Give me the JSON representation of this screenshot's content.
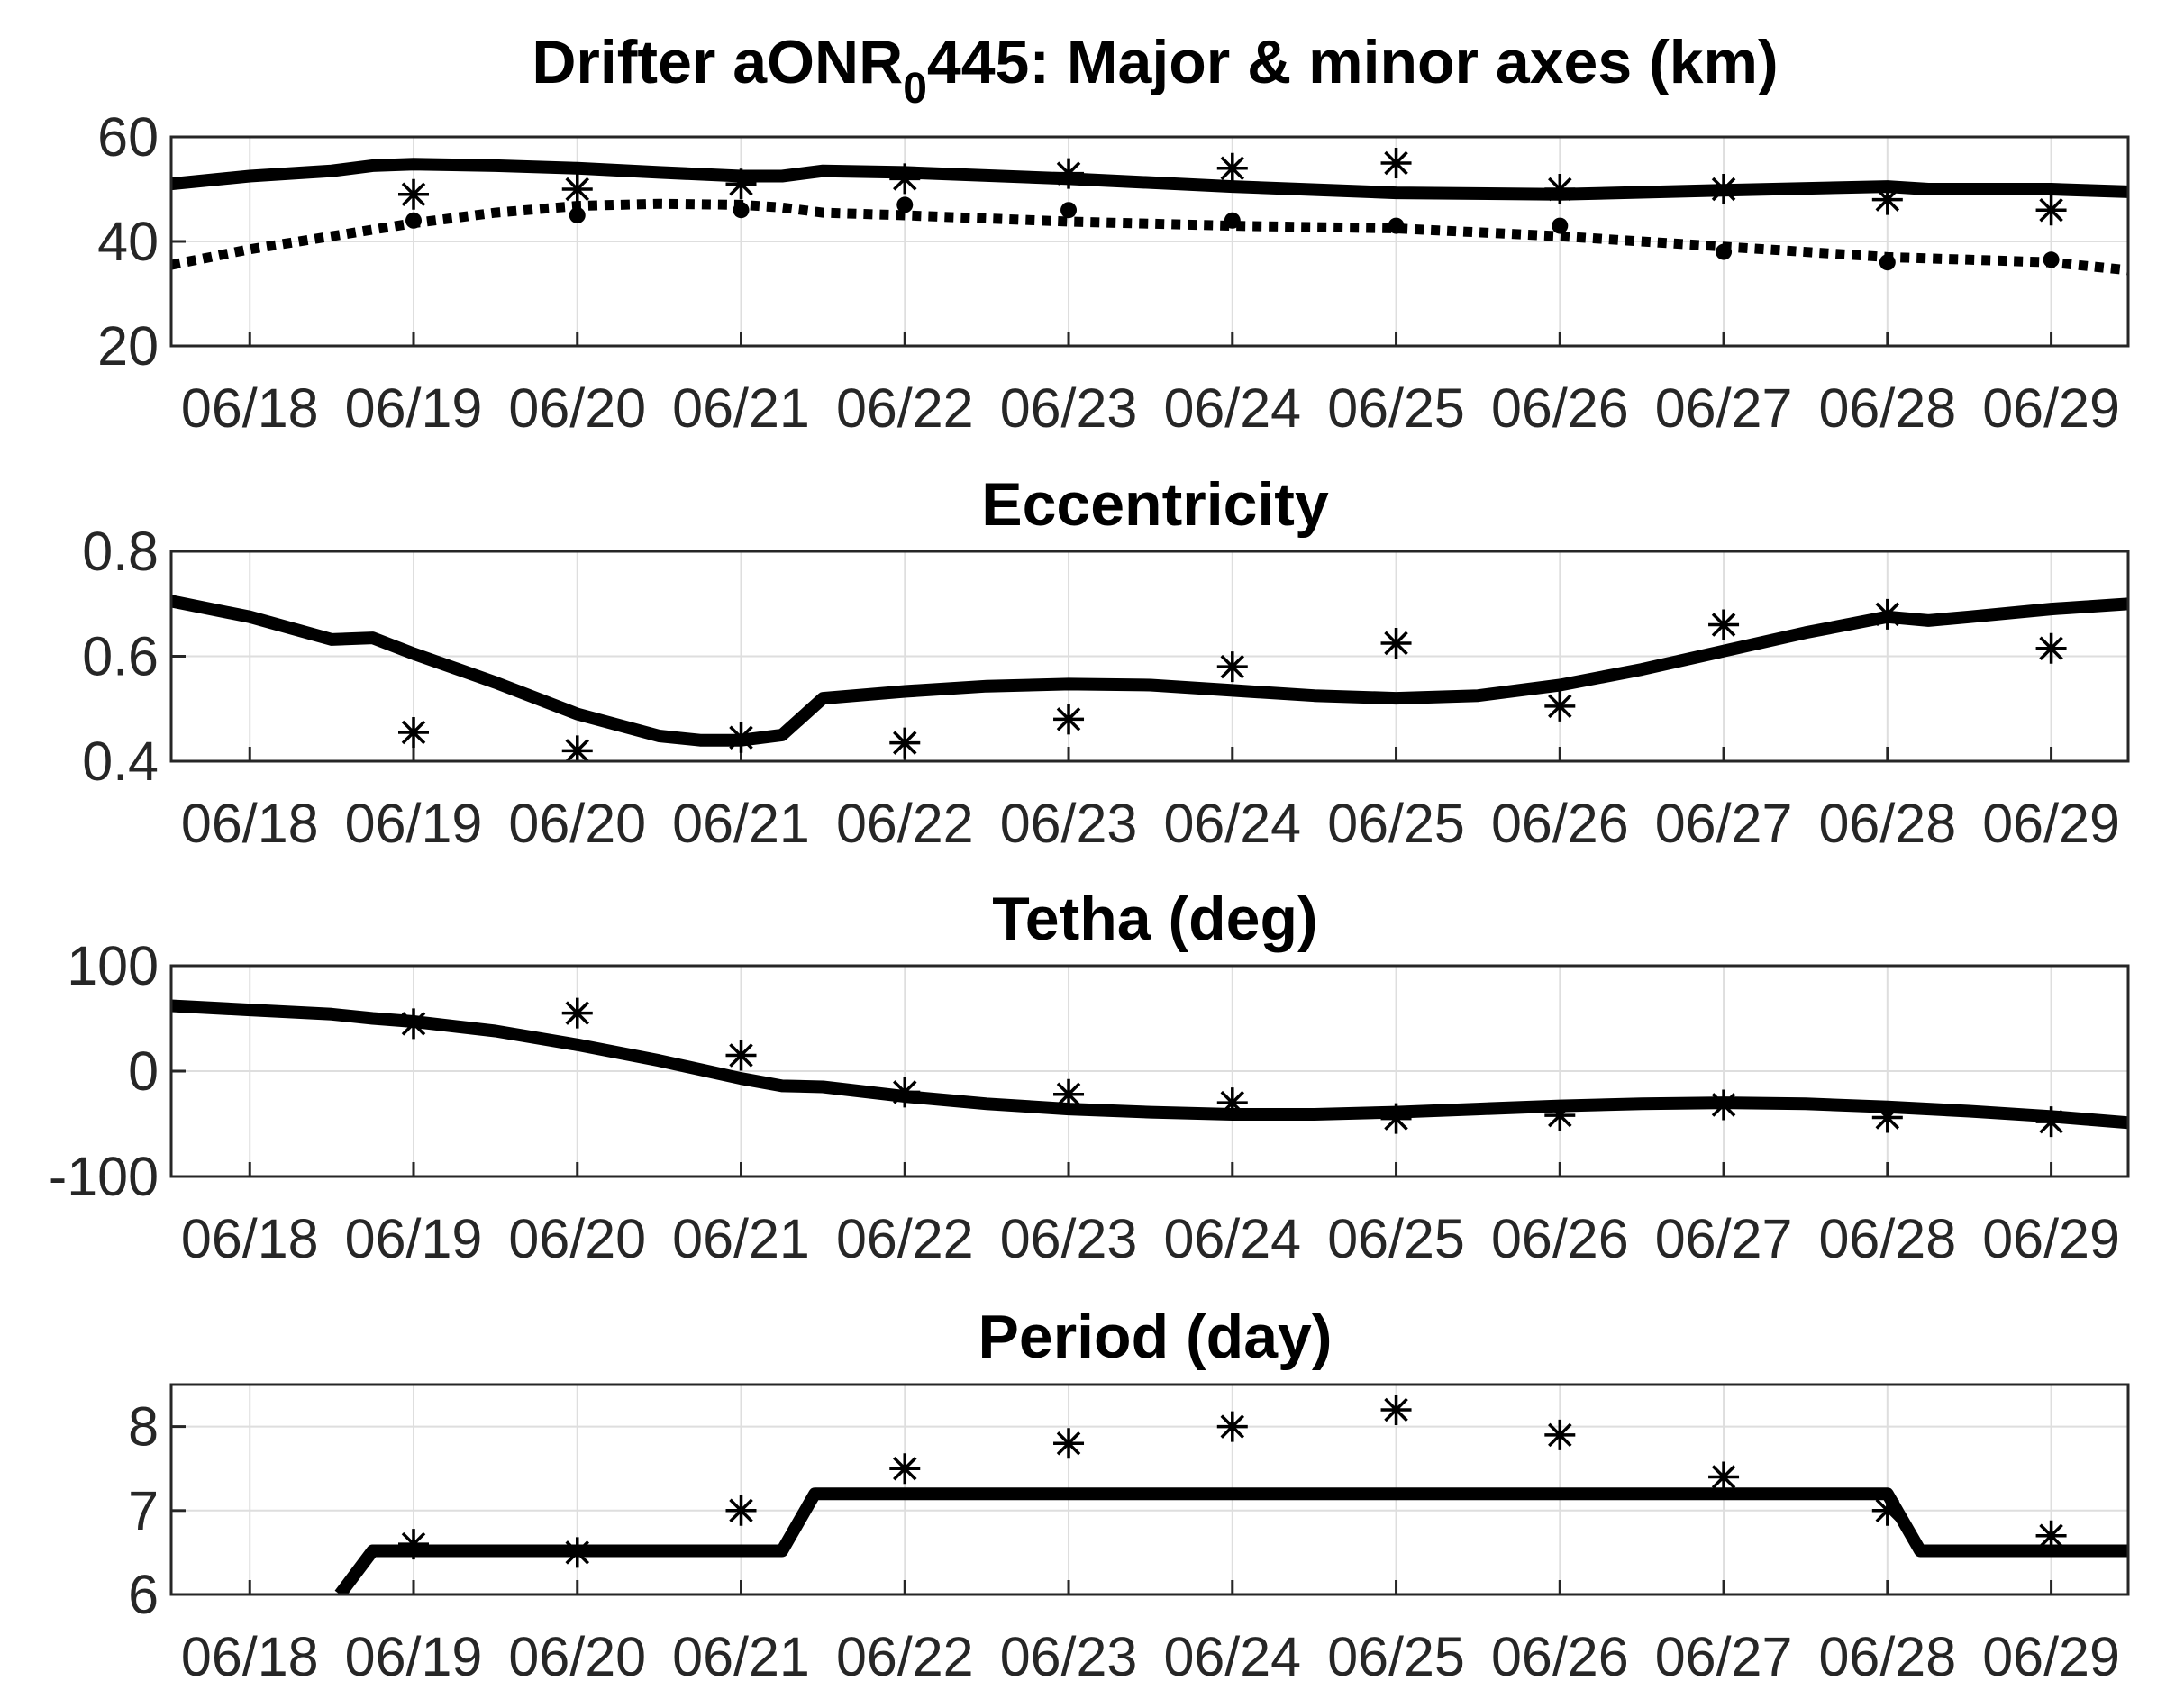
{
  "chart_data": [
    {
      "type": "line",
      "title_parts": [
        "Drifter aONR",
        "0",
        "445: Major & minor axes (km)"
      ],
      "xtick_labels": [
        "06/18",
        "06/19",
        "06/20",
        "06/21",
        "06/22",
        "06/23",
        "06/24",
        "06/25",
        "06/26",
        "06/27",
        "06/28",
        "06/29"
      ],
      "xlim": [
        17.52,
        29.47
      ],
      "ylim": [
        20,
        60
      ],
      "yticks": [
        "60",
        "40",
        "20"
      ],
      "ytick_values": [
        60,
        40,
        20
      ],
      "grid": true,
      "series": [
        {
          "style": "solid-line",
          "x": [
            17.52,
            18.0,
            18.5,
            18.75,
            19.0,
            19.5,
            20.0,
            20.5,
            21.0,
            21.25,
            21.5,
            22.0,
            23.0,
            24.0,
            25.0,
            26.0,
            27.0,
            28.0,
            28.25,
            29.0,
            29.47
          ],
          "y": [
            51,
            52.5,
            53.5,
            54.5,
            54.8,
            54.5,
            54,
            53.2,
            52.5,
            52.5,
            53.5,
            53.2,
            52,
            50.5,
            49.3,
            49,
            49.8,
            50.5,
            50,
            50,
            49.5
          ]
        },
        {
          "style": "dotted-line",
          "x": [
            17.52,
            18.0,
            18.5,
            19.0,
            19.5,
            20.0,
            20.5,
            21.0,
            21.25,
            21.5,
            22.0,
            23.0,
            24.0,
            25.0,
            26.0,
            27.0,
            28.0,
            28.5,
            29.0,
            29.47
          ],
          "y": [
            35.5,
            38.5,
            41,
            43.5,
            45.5,
            46.8,
            47.2,
            47,
            46.5,
            45.5,
            45,
            43.8,
            43,
            42.5,
            41,
            39,
            37,
            36.5,
            36,
            34.5
          ]
        },
        {
          "style": "stars",
          "x": [
            19,
            20,
            21,
            22,
            23,
            24,
            25,
            26,
            27,
            28,
            29
          ],
          "y": [
            49,
            50,
            51,
            52,
            53,
            54,
            55,
            50,
            50,
            48,
            46
          ]
        },
        {
          "style": "dots",
          "x": [
            19,
            20,
            21,
            22,
            23,
            24,
            25,
            26,
            27,
            28,
            29
          ],
          "y": [
            44,
            45,
            46,
            47,
            46,
            44,
            43,
            43,
            38,
            36,
            36.5
          ]
        }
      ]
    },
    {
      "type": "line",
      "title": "Eccentricity",
      "xtick_labels": [
        "06/18",
        "06/19",
        "06/20",
        "06/21",
        "06/22",
        "06/23",
        "06/24",
        "06/25",
        "06/26",
        "06/27",
        "06/28",
        "06/29"
      ],
      "xlim": [
        17.52,
        29.47
      ],
      "ylim": [
        0.4,
        0.8
      ],
      "yticks": [
        "0.8",
        "0.6",
        "0.4"
      ],
      "ytick_values": [
        0.8,
        0.6,
        0.4
      ],
      "grid": true,
      "series": [
        {
          "style": "solid-line",
          "x": [
            17.52,
            18.0,
            18.5,
            18.75,
            19.0,
            19.5,
            20.0,
            20.5,
            20.75,
            21.0,
            21.25,
            21.5,
            22.0,
            22.5,
            23.0,
            23.5,
            24.0,
            24.5,
            25.0,
            25.5,
            26.0,
            26.5,
            27.0,
            27.5,
            28.0,
            28.25,
            28.5,
            29.0,
            29.47
          ],
          "y": [
            0.705,
            0.675,
            0.632,
            0.635,
            0.605,
            0.55,
            0.49,
            0.448,
            0.44,
            0.44,
            0.45,
            0.52,
            0.533,
            0.543,
            0.547,
            0.545,
            0.535,
            0.525,
            0.52,
            0.525,
            0.545,
            0.575,
            0.61,
            0.645,
            0.675,
            0.668,
            0.675,
            0.69,
            0.7
          ]
        },
        {
          "style": "stars",
          "x": [
            19,
            20,
            21,
            22,
            23,
            24,
            25,
            26,
            27,
            28,
            29
          ],
          "y": [
            0.455,
            0.42,
            0.445,
            0.435,
            0.48,
            0.58,
            0.625,
            0.505,
            0.66,
            0.68,
            0.615
          ]
        }
      ]
    },
    {
      "type": "line",
      "title": "Tetha (deg)",
      "xtick_labels": [
        "06/18",
        "06/19",
        "06/20",
        "06/21",
        "06/22",
        "06/23",
        "06/24",
        "06/25",
        "06/26",
        "06/27",
        "06/28",
        "06/29"
      ],
      "xlim": [
        17.52,
        29.47
      ],
      "ylim": [
        -100,
        100
      ],
      "yticks": [
        "100",
        "0",
        "-100"
      ],
      "ytick_values": [
        100,
        0,
        -100
      ],
      "grid": true,
      "series": [
        {
          "style": "solid-line",
          "x": [
            17.52,
            18.0,
            18.5,
            18.75,
            19.0,
            19.5,
            20.0,
            20.5,
            21.0,
            21.25,
            21.5,
            22.0,
            22.5,
            23.0,
            23.5,
            24.0,
            24.5,
            25.0,
            25.5,
            26.0,
            26.5,
            27.0,
            27.5,
            28.0,
            28.5,
            29.0,
            29.47
          ],
          "y": [
            62,
            58,
            54,
            50,
            47,
            38,
            25,
            10,
            -7,
            -14,
            -15,
            -24,
            -31,
            -36,
            -39,
            -41,
            -41,
            -39,
            -36,
            -33,
            -31,
            -30,
            -31,
            -34,
            -38,
            -43,
            -49
          ]
        },
        {
          "style": "stars",
          "x": [
            19,
            20,
            21,
            22,
            23,
            24,
            25,
            26,
            27,
            28,
            29
          ],
          "y": [
            45,
            55,
            15,
            -20,
            -22,
            -30,
            -45,
            -42,
            -32,
            -44,
            -48
          ]
        }
      ]
    },
    {
      "type": "line",
      "title": "Period (day)",
      "xtick_labels": [
        "06/18",
        "06/19",
        "06/20",
        "06/21",
        "06/22",
        "06/23",
        "06/24",
        "06/25",
        "06/26",
        "06/27",
        "06/28",
        "06/29"
      ],
      "xlim": [
        17.52,
        29.47
      ],
      "ylim": [
        6,
        8.5
      ],
      "yticks": [
        "8",
        "7",
        "6"
      ],
      "ytick_values": [
        8,
        7,
        6
      ],
      "grid": true,
      "series": [
        {
          "style": "solid-line",
          "x": [
            18.55,
            18.75,
            21.25,
            21.45,
            28.0,
            28.2,
            29.47
          ],
          "y": [
            6.0,
            6.52,
            6.52,
            7.2,
            7.2,
            6.52,
            6.52
          ]
        },
        {
          "style": "stars",
          "x": [
            19,
            20,
            21,
            22,
            23,
            24,
            25,
            26,
            27,
            28,
            29
          ],
          "y": [
            6.6,
            6.5,
            7.0,
            7.5,
            7.8,
            8.0,
            8.2,
            7.9,
            7.4,
            7.0,
            6.7
          ]
        }
      ]
    }
  ]
}
